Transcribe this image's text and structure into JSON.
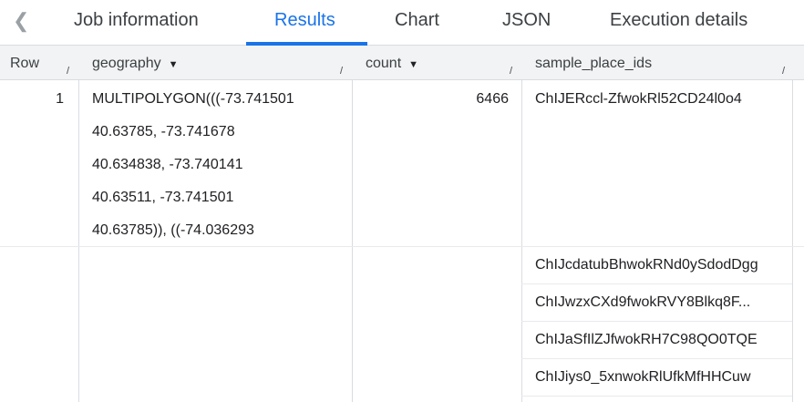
{
  "tabs": {
    "back_icon": "chevron-left-icon",
    "items": [
      {
        "label": "Job information"
      },
      {
        "label": "Results"
      },
      {
        "label": "Chart"
      },
      {
        "label": "JSON"
      },
      {
        "label": "Execution details"
      }
    ],
    "active": "Results"
  },
  "columns": [
    {
      "label": "Row"
    },
    {
      "label": "geography"
    },
    {
      "label": "count"
    },
    {
      "label": "sample_place_ids"
    }
  ],
  "rows": [
    {
      "row": "1",
      "geography": [
        "MULTIPOLYGON(((-73.741501",
        "40.63785, -73.741678",
        "40.634838, -73.740141",
        "40.63511, -73.741501",
        "40.63785)), ((-74.036293"
      ],
      "count": "6466",
      "sample_place_ids": [
        "ChIJERccl-ZfwokRl52CD24l0o4",
        "ChIJcdatubBhwokRNd0ySdodDgg",
        "ChIJwzxCXd9fwokRVY8Blkq8F...",
        "ChIJaSfIlZJfwokRH7C98QO0TQE",
        "ChIJiys0_5xnwokRlUfkMfHHCuw"
      ]
    }
  ],
  "colors": {
    "accent": "#1a73e8",
    "header_bg": "#f1f3f4"
  }
}
